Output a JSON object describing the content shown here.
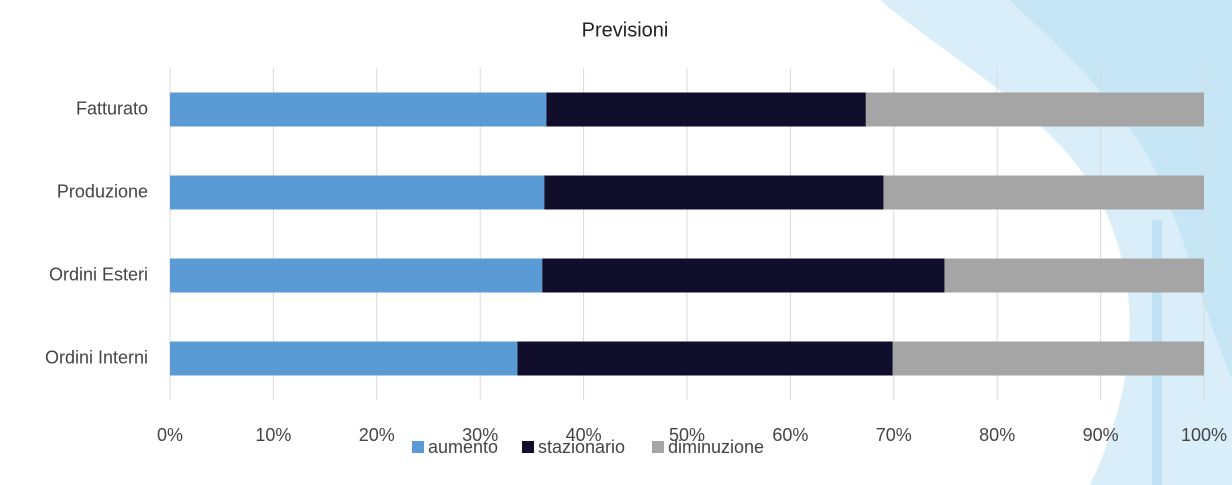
{
  "chart_data": {
    "type": "stacked_barh",
    "title": "Previsioni",
    "categories": [
      "Fatturato",
      "Produzione",
      "Ordini Esteri",
      "Ordini Interni"
    ],
    "series": [
      {
        "name": "aumento",
        "color": "#5b9bd5",
        "values": [
          36.4,
          36.2,
          36.0,
          33.6
        ]
      },
      {
        "name": "stazionario",
        "color": "#110e2c",
        "values": [
          30.9,
          32.8,
          38.9,
          36.3
        ]
      },
      {
        "name": "diminuzione",
        "color": "#a5a5a5",
        "values": [
          32.7,
          31.0,
          25.1,
          30.1
        ]
      }
    ],
    "xlim": [
      0,
      100
    ],
    "xticks": [
      {
        "value": 0,
        "label": "0%"
      },
      {
        "value": 10,
        "label": "10%"
      },
      {
        "value": 20,
        "label": "20%"
      },
      {
        "value": 30,
        "label": "30%"
      },
      {
        "value": 40,
        "label": "40%"
      },
      {
        "value": 50,
        "label": "50%"
      },
      {
        "value": 60,
        "label": "60%"
      },
      {
        "value": 70,
        "label": "70%"
      },
      {
        "value": 80,
        "label": "80%"
      },
      {
        "value": 90,
        "label": "90%"
      },
      {
        "value": 100,
        "label": "100%"
      }
    ],
    "grid": true,
    "legend": "bottom"
  }
}
